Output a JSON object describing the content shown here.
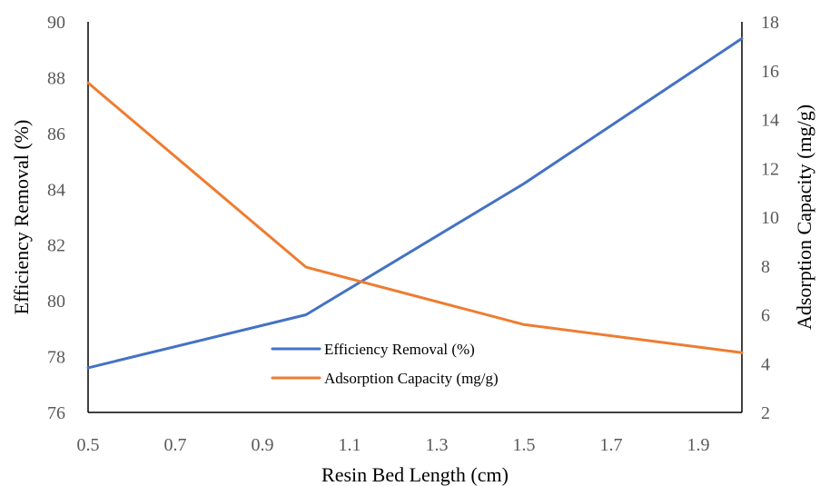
{
  "chart_data": {
    "type": "line",
    "x": [
      0.5,
      1.0,
      1.5,
      2.0
    ],
    "xlabel": "Resin Bed Length (cm)",
    "xlim": [
      0.5,
      2.0
    ],
    "xticks": [
      "0.5",
      "0.7",
      "0.9",
      "1.1",
      "1.3",
      "1.5",
      "1.7",
      "1.9"
    ],
    "ylabel_left": "Efficiency Removal (%)",
    "ylim_left": [
      76,
      90
    ],
    "yticks_left": [
      "76",
      "78",
      "80",
      "82",
      "84",
      "86",
      "88",
      "90"
    ],
    "ylabel_right": "Adsorption Capacity (mg/g)",
    "ylim_right": [
      2,
      18
    ],
    "yticks_right": [
      "2",
      "4",
      "6",
      "8",
      "10",
      "12",
      "14",
      "16",
      "18"
    ],
    "grid": false,
    "legend_position": "bottom-center (inside plot)",
    "series": [
      {
        "name": "Efficiency Removal (%)",
        "axis": "left",
        "color": "#4472C4",
        "values": [
          77.6,
          79.5,
          84.2,
          89.4
        ]
      },
      {
        "name": "Adsorption Capacity (mg/g)",
        "axis": "right",
        "color": "#ED7D31",
        "values": [
          15.5,
          7.95,
          5.6,
          4.45
        ]
      }
    ]
  }
}
